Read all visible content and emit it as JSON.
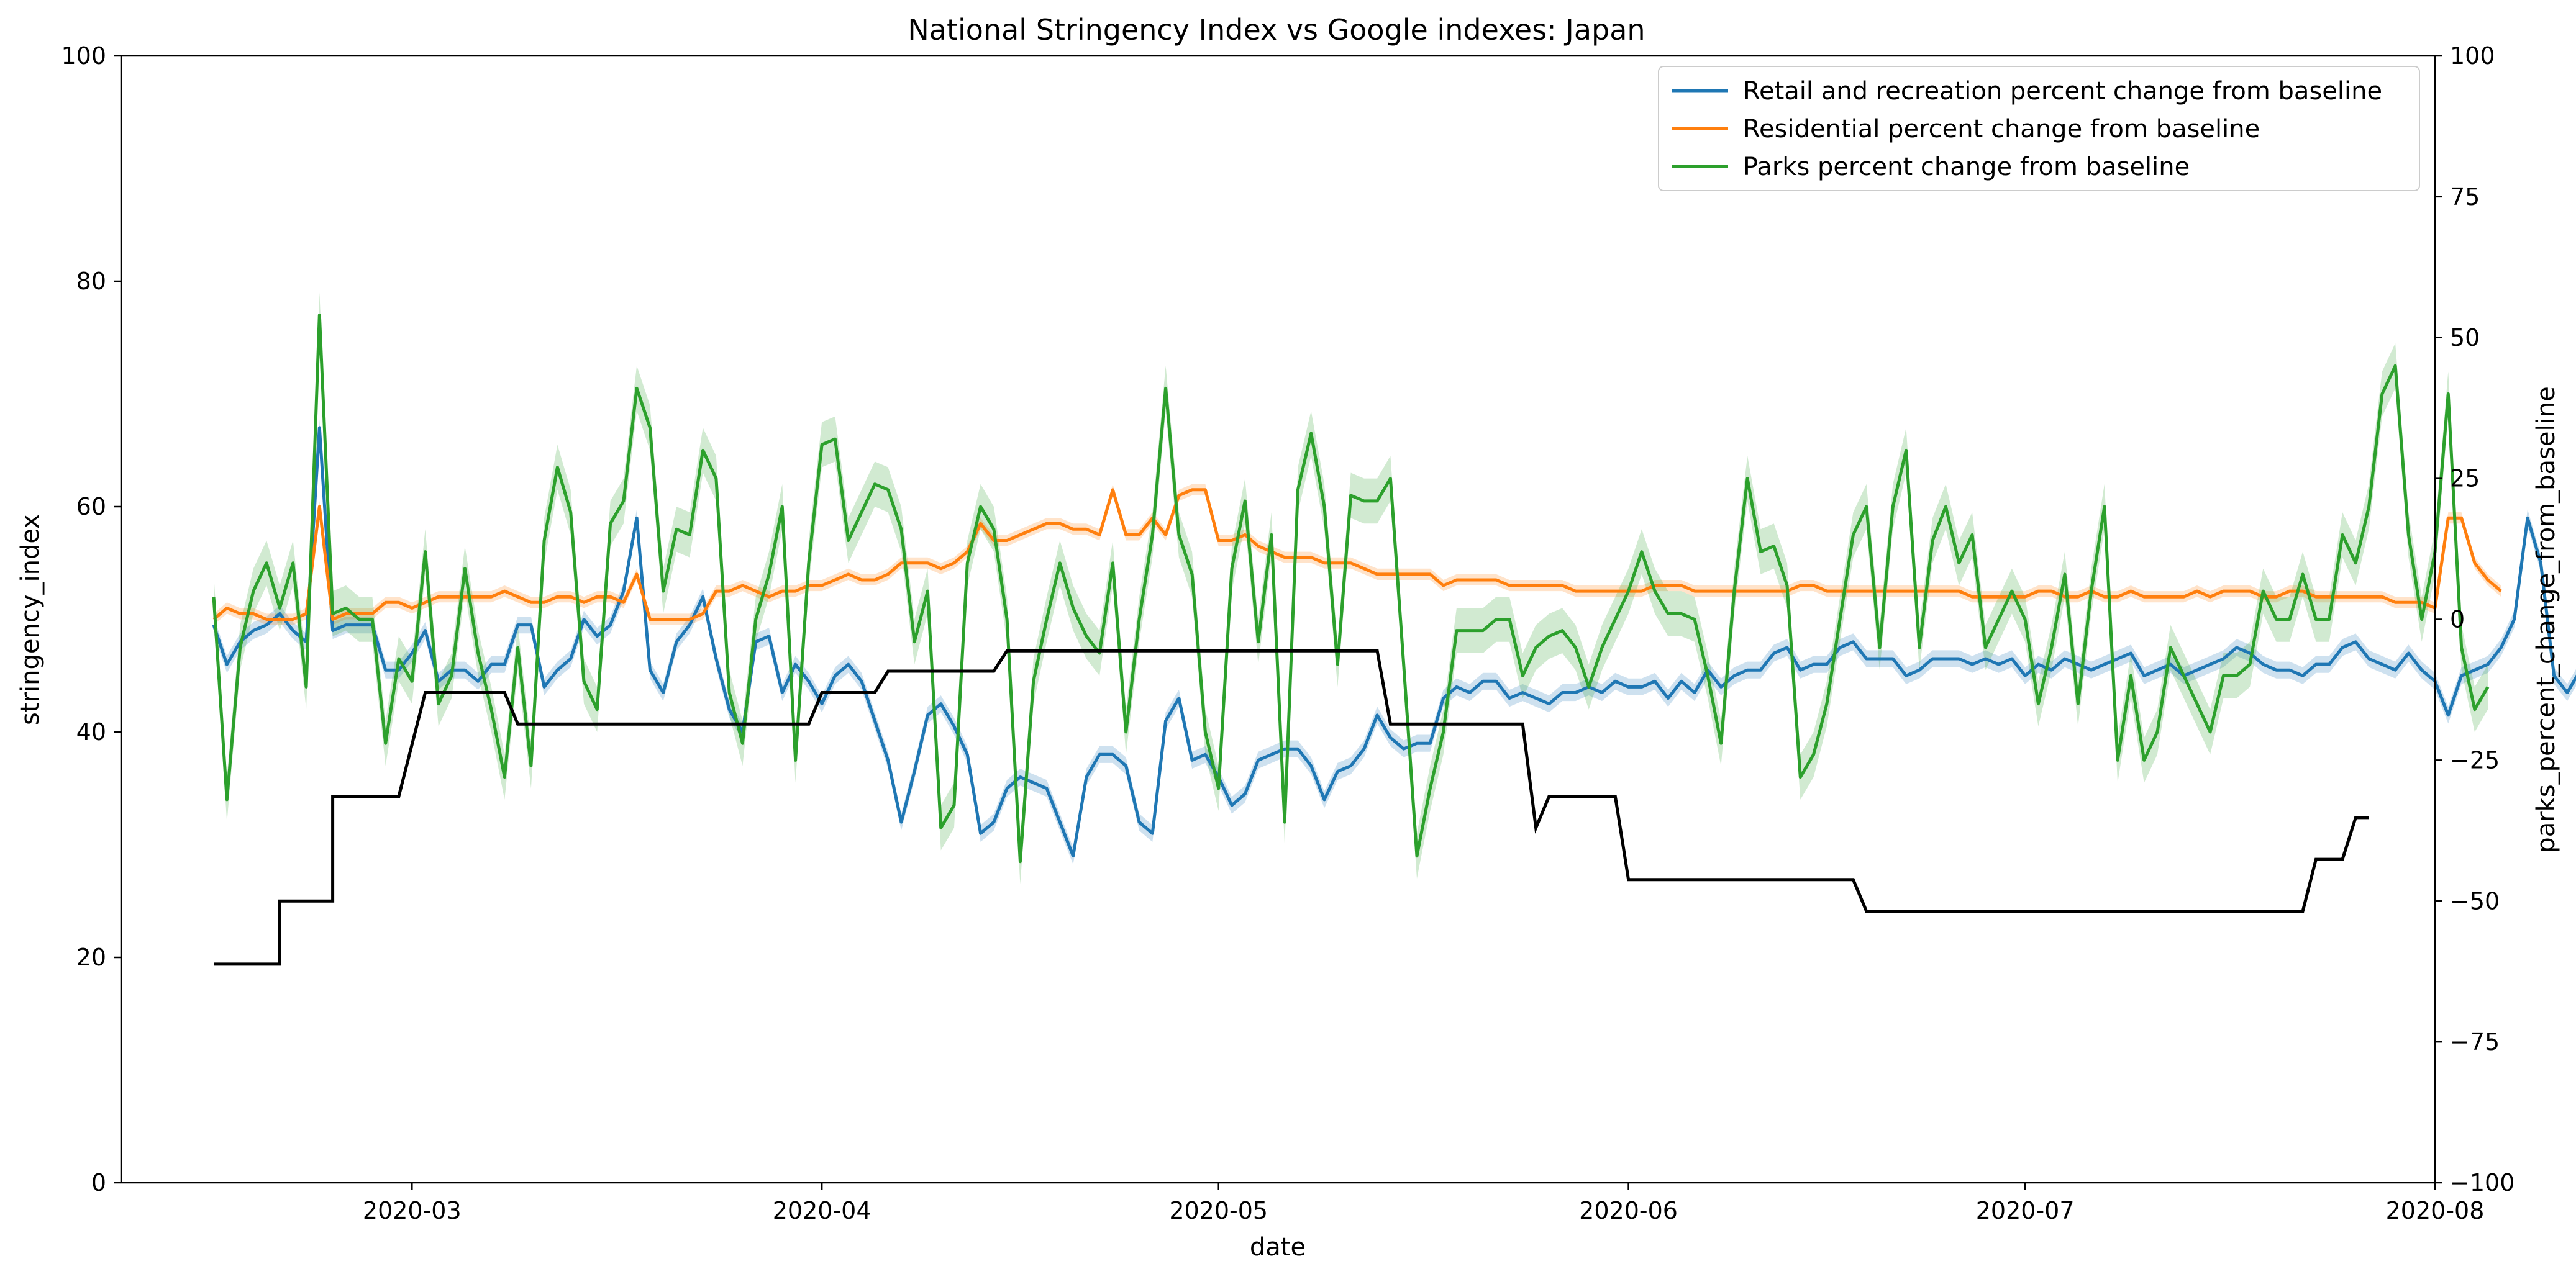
{
  "chart_data": {
    "type": "line",
    "title": "National Stringency Index vs Google indexes: Japan",
    "xlabel": "date",
    "ylabel": "stringency_index",
    "y2label": "parks_percent_change_from_baseline",
    "x_range": [
      "2020-02-08",
      "2020-08-01"
    ],
    "ylim": [
      0,
      100
    ],
    "y2lim": [
      -100,
      100
    ],
    "x_ticks": [
      "2020-03",
      "2020-04",
      "2020-05",
      "2020-06",
      "2020-07",
      "2020-08"
    ],
    "x_tick_dates": [
      "2020-03-01",
      "2020-04-01",
      "2020-05-01",
      "2020-06-01",
      "2020-07-01",
      "2020-08-01"
    ],
    "y_ticks": [
      0,
      20,
      40,
      60,
      80,
      100
    ],
    "y2_ticks": [
      -100,
      -75,
      -50,
      -25,
      0,
      25,
      50,
      75,
      100
    ],
    "legend": {
      "position": "top-right"
    },
    "grid": false,
    "colors": {
      "retail": "#1f77b4",
      "residential": "#ff7f0e",
      "parks": "#2ca02c",
      "stringency": "#000000"
    },
    "stringency": {
      "name": "",
      "axis": "left",
      "color": "#000000",
      "points": [
        [
          "2020-02-15",
          19.4
        ],
        [
          "2020-02-20",
          19.4
        ],
        [
          "2020-02-20",
          25.0
        ],
        [
          "2020-02-22",
          25.0
        ],
        [
          "2020-02-24",
          25.0
        ],
        [
          "2020-02-24",
          34.3
        ],
        [
          "2020-02-29",
          34.3
        ],
        [
          "2020-02-29",
          34.3
        ],
        [
          "2020-03-02",
          43.5
        ],
        [
          "2020-03-08",
          43.5
        ],
        [
          "2020-03-09",
          40.7
        ],
        [
          "2020-03-31",
          40.7
        ],
        [
          "2020-04-01",
          43.5
        ],
        [
          "2020-04-05",
          43.5
        ],
        [
          "2020-04-06",
          45.4
        ],
        [
          "2020-04-14",
          45.4
        ],
        [
          "2020-04-15",
          47.2
        ],
        [
          "2020-05-13",
          47.2
        ],
        [
          "2020-05-14",
          40.7
        ],
        [
          "2020-05-24",
          40.7
        ],
        [
          "2020-05-25",
          31.5
        ],
        [
          "2020-05-26",
          34.3
        ],
        [
          "2020-05-31",
          34.3
        ],
        [
          "2020-06-01",
          26.9
        ],
        [
          "2020-06-18",
          26.9
        ],
        [
          "2020-06-19",
          24.1
        ],
        [
          "2020-07-22",
          24.1
        ],
        [
          "2020-07-23",
          28.7
        ],
        [
          "2020-07-25",
          28.7
        ],
        [
          "2020-07-26",
          32.4
        ],
        [
          "2020-07-27",
          32.4
        ]
      ]
    },
    "series": [
      {
        "name": "Retail and recreation percent change from baseline",
        "axis": "right",
        "color": "#1f77b4",
        "start": "2020-02-15",
        "values": [
          -1,
          -8,
          -4,
          -2,
          -1,
          1,
          -2,
          -4,
          34,
          -2,
          -1,
          -1,
          -1,
          -9,
          -9,
          -6,
          -2,
          -11,
          -9,
          -9,
          -11,
          -8,
          -8,
          -1,
          -1,
          -12,
          -9,
          -7,
          0,
          -3,
          -1,
          5,
          18,
          -9,
          -13,
          -4,
          -1,
          4,
          -7,
          -16,
          -20,
          -4,
          -3,
          -13,
          -8,
          -11,
          -15,
          -10,
          -8,
          -11,
          -18,
          -25,
          -36,
          -27,
          -17,
          -15,
          -19,
          -24,
          -38,
          -36,
          -30,
          -28,
          -29,
          -30,
          -36,
          -42,
          -28,
          -24,
          -24,
          -26,
          -36,
          -38,
          -18,
          -14,
          -25,
          -24,
          -28,
          -33,
          -31,
          -25,
          -24,
          -23,
          -23,
          -26,
          -32,
          -27,
          -26,
          -23,
          -17,
          -21,
          -23,
          -22,
          -22,
          -14,
          -12,
          -13,
          -11,
          -11,
          -14,
          -13,
          -14,
          -15,
          -13,
          -13,
          -12,
          -13,
          -11,
          -12,
          -12,
          -11,
          -14,
          -11,
          -13,
          -9,
          -12,
          -10,
          -9,
          -9,
          -6,
          -5,
          -9,
          -8,
          -8,
          -5,
          -4,
          -7,
          -7,
          -7,
          -10,
          -9,
          -7,
          -7,
          -7,
          -8,
          -7,
          -8,
          -7,
          -10,
          -8,
          -9,
          -7,
          -8,
          -9,
          -8,
          -7,
          -6,
          -10,
          -9,
          -8,
          -10,
          -9,
          -8,
          -7,
          -5,
          -6,
          -8,
          -9,
          -9,
          -10,
          -8,
          -8,
          -5,
          -4,
          -7,
          -8,
          -9,
          -6,
          -9,
          -11,
          -17,
          -10,
          -9,
          -8,
          -5,
          0,
          18,
          10,
          -10,
          -13,
          -9
        ]
      },
      {
        "name": "Residential percent change from baseline",
        "axis": "right",
        "color": "#ff7f0e",
        "start": "2020-02-15",
        "values": [
          0,
          2,
          1,
          1,
          0,
          0,
          0,
          1,
          20,
          0,
          1,
          1,
          1,
          3,
          3,
          2,
          3,
          4,
          4,
          4,
          4,
          4,
          5,
          4,
          3,
          3,
          4,
          4,
          3,
          4,
          4,
          3,
          8,
          0,
          0,
          0,
          0,
          1,
          5,
          5,
          6,
          5,
          4,
          5,
          5,
          6,
          6,
          7,
          8,
          7,
          7,
          8,
          10,
          10,
          10,
          9,
          10,
          12,
          17,
          14,
          14,
          15,
          16,
          17,
          17,
          16,
          16,
          15,
          23,
          15,
          15,
          18,
          15,
          22,
          23,
          23,
          14,
          14,
          15,
          13,
          12,
          11,
          11,
          11,
          10,
          10,
          10,
          9,
          8,
          8,
          8,
          8,
          8,
          6,
          7,
          7,
          7,
          7,
          6,
          6,
          6,
          6,
          6,
          5,
          5,
          5,
          5,
          5,
          5,
          6,
          6,
          6,
          5,
          5,
          5,
          5,
          5,
          5,
          5,
          5,
          6,
          6,
          5,
          5,
          5,
          5,
          5,
          5,
          5,
          5,
          5,
          5,
          5,
          4,
          4,
          4,
          4,
          4,
          5,
          5,
          4,
          4,
          5,
          4,
          4,
          5,
          4,
          4,
          4,
          4,
          5,
          4,
          5,
          5,
          5,
          4,
          4,
          5,
          5,
          4,
          4,
          4,
          4,
          4,
          4,
          3,
          3,
          3,
          2,
          18,
          18,
          10,
          7,
          5
        ]
      },
      {
        "name": "Parks percent change from baseline",
        "axis": "right",
        "color": "#2ca02c",
        "start": "2020-02-15",
        "values": [
          4,
          -32,
          -5,
          5,
          10,
          2,
          10,
          -12,
          54,
          1,
          2,
          0,
          0,
          -22,
          -7,
          -11,
          12,
          -15,
          -10,
          9,
          -6,
          -16,
          -28,
          -5,
          -26,
          14,
          27,
          19,
          -11,
          -16,
          17,
          21,
          41,
          34,
          5,
          16,
          15,
          30,
          25,
          -13,
          -22,
          0,
          8,
          20,
          -25,
          10,
          31,
          32,
          14,
          19,
          24,
          23,
          16,
          -4,
          5,
          -37,
          -33,
          10,
          20,
          16,
          0,
          -43,
          -11,
          0,
          10,
          2,
          -3,
          -6,
          10,
          -20,
          0,
          15,
          41,
          15,
          8,
          -20,
          -30,
          9,
          21,
          -4,
          15,
          -36,
          23,
          33,
          20,
          -8,
          22,
          21,
          21,
          25,
          -8,
          -42,
          -30,
          -20,
          -2,
          -2,
          -2,
          0,
          0,
          -10,
          -5,
          -3,
          -2,
          -5,
          -12,
          -5,
          0,
          5,
          12,
          5,
          1,
          1,
          0,
          -10,
          -22,
          5,
          25,
          12,
          13,
          6,
          -28,
          -24,
          -15,
          0,
          15,
          20,
          -5,
          20,
          30,
          -5,
          14,
          20,
          10,
          15,
          -5,
          0,
          5,
          0,
          -15,
          -5,
          8,
          -15,
          5,
          20,
          -25,
          -10,
          -25,
          -20,
          -5,
          -10,
          -15,
          -20,
          -10,
          -10,
          -8,
          5,
          0,
          0,
          8,
          0,
          0,
          15,
          10,
          20,
          40,
          45,
          15,
          0,
          12,
          40,
          -5,
          -16,
          -12
        ]
      }
    ]
  }
}
